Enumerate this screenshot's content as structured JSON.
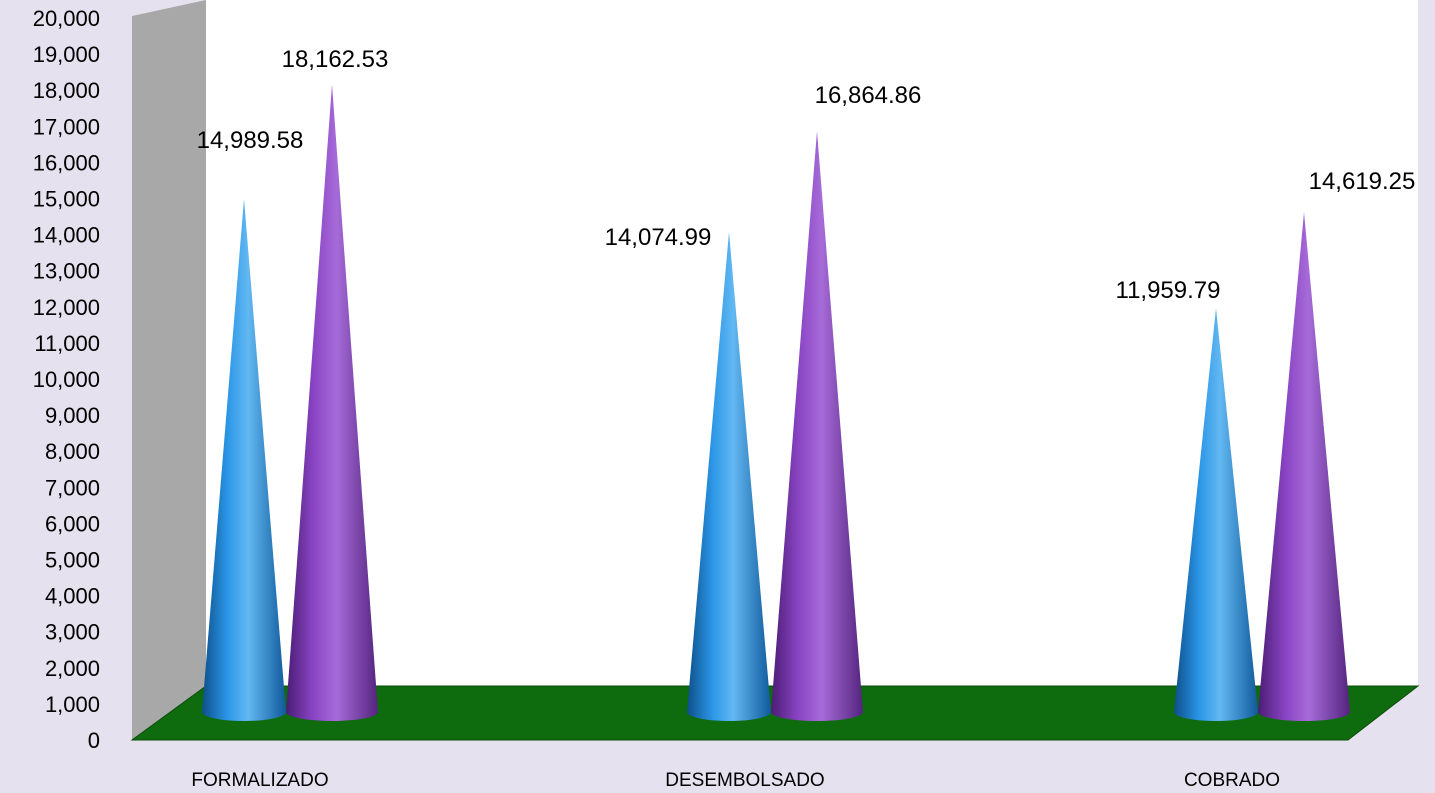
{
  "chart_data": {
    "type": "bar",
    "style": "3d-cone",
    "title": "",
    "xlabel": "",
    "ylabel": "",
    "categories": [
      "FORMALIZADO",
      "DESEMBOLSADO",
      "COBRADO"
    ],
    "series": [
      {
        "color": "#1f86d6",
        "values": [
          14989.58,
          14074.99,
          11959.79
        ],
        "labels": [
          "14,989.58",
          "14,074.99",
          "11,959.79"
        ]
      },
      {
        "color": "#7f3ab8",
        "values": [
          18162.53,
          16864.86,
          14619.25
        ],
        "labels": [
          "18,162.53",
          "16,864.86",
          "14,619.25"
        ]
      }
    ],
    "ylim": [
      0,
      20000
    ],
    "yticks": [
      "0",
      "1,000",
      "2,000",
      "3,000",
      "4,000",
      "5,000",
      "6,000",
      "7,000",
      "8,000",
      "9,000",
      "10,000",
      "11,000",
      "12,000",
      "13,000",
      "14,000",
      "15,000",
      "16,000",
      "17,000",
      "18,000",
      "19,000",
      "20,000"
    ],
    "grid": false,
    "legend": "none",
    "colors": {
      "background": "#e6e1ee",
      "back_wall": "#ffffff",
      "side_wall": "#a8a8a8",
      "floor": "#0e6b0e"
    }
  }
}
